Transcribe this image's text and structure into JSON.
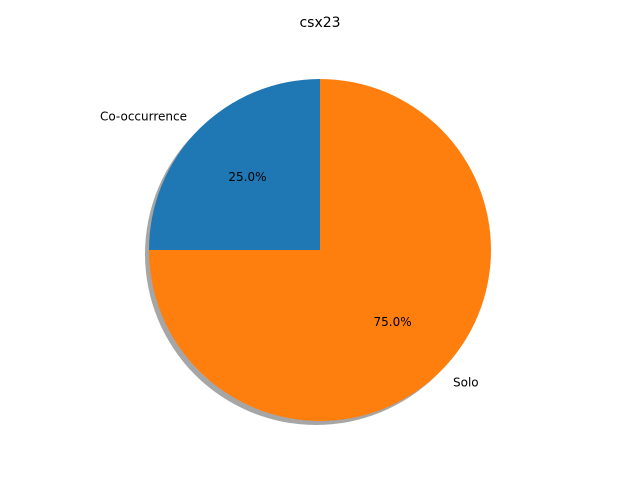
{
  "chart_data": {
    "type": "pie",
    "title": "csx23",
    "slices": [
      {
        "label": "Co-occurrence",
        "value": 25,
        "pct_label": "25.0%",
        "color": "#1f77b4"
      },
      {
        "label": "Solo",
        "value": 75,
        "pct_label": "75.0%",
        "color": "#ff7f0e"
      }
    ],
    "start_angle_deg": 90,
    "direction": "counterclockwise",
    "shadow": true,
    "legend": "none"
  }
}
